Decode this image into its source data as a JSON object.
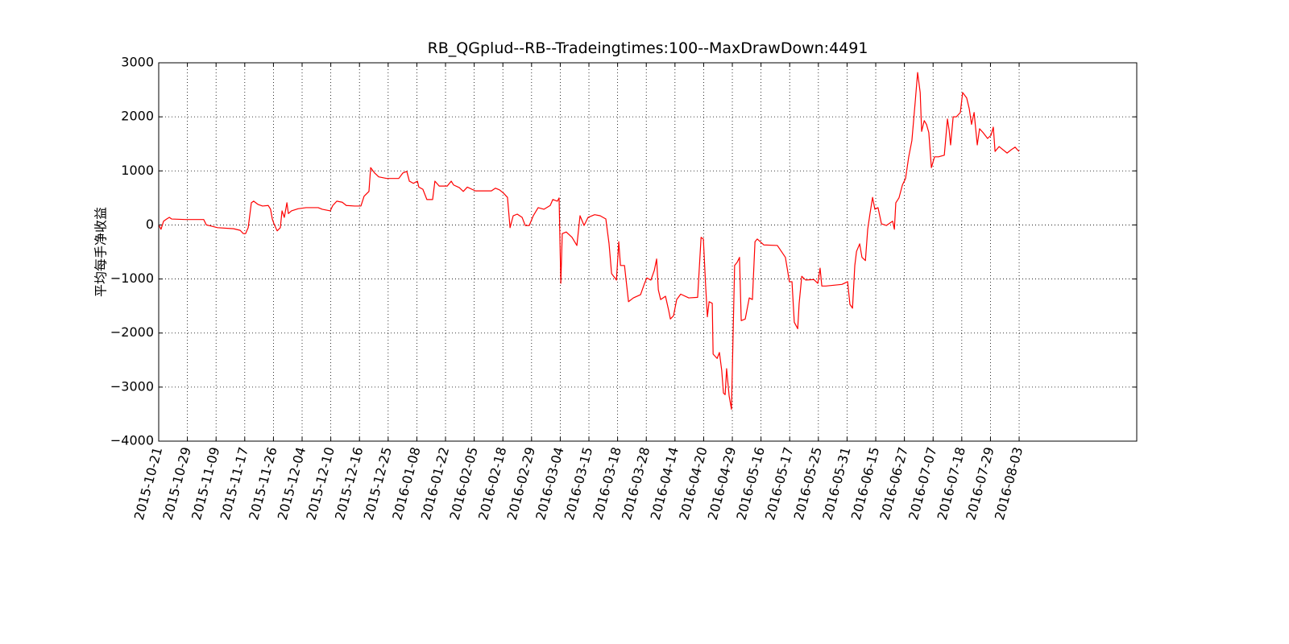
{
  "chart_data": {
    "type": "line",
    "title": "RB_QGplud--RB--Tradeingtimes:100--MaxDrawDown:4491",
    "y_label": "平均每手净收益",
    "color": "#ff0000",
    "grid": true,
    "xlim": [
      0,
      3410
    ],
    "ylim": [
      -4000,
      3000
    ],
    "yticks": [
      {
        "value": -4000,
        "label": "−4000"
      },
      {
        "value": -3000,
        "label": "−3000"
      },
      {
        "value": -2000,
        "label": "−2000"
      },
      {
        "value": -1000,
        "label": "−1000"
      },
      0,
      1000,
      2000,
      3000
    ],
    "xticks": [
      {
        "value": 0,
        "label": "2015-10-21"
      },
      {
        "value": 100,
        "label": "2015-10-29"
      },
      {
        "value": 200,
        "label": "2015-11-09"
      },
      {
        "value": 300,
        "label": "2015-11-17"
      },
      {
        "value": 400,
        "label": "2015-11-26"
      },
      {
        "value": 500,
        "label": "2015-12-04"
      },
      {
        "value": 600,
        "label": "2015-12-10"
      },
      {
        "value": 700,
        "label": "2015-12-16"
      },
      {
        "value": 800,
        "label": "2015-12-25"
      },
      {
        "value": 900,
        "label": "2016-01-08"
      },
      {
        "value": 1000,
        "label": "2016-01-22"
      },
      {
        "value": 1100,
        "label": "2016-02-05"
      },
      {
        "value": 1200,
        "label": "2016-02-18"
      },
      {
        "value": 1300,
        "label": "2016-02-29"
      },
      {
        "value": 1400,
        "label": "2016-03-04"
      },
      {
        "value": 1500,
        "label": "2016-03-15"
      },
      {
        "value": 1600,
        "label": "2016-03-18"
      },
      {
        "value": 1700,
        "label": "2016-03-28"
      },
      {
        "value": 1800,
        "label": "2016-04-14"
      },
      {
        "value": 1900,
        "label": "2016-04-20"
      },
      {
        "value": 2000,
        "label": "2016-04-29"
      },
      {
        "value": 2100,
        "label": "2016-05-16"
      },
      {
        "value": 2200,
        "label": "2016-05-17"
      },
      {
        "value": 2300,
        "label": "2016-05-25"
      },
      {
        "value": 2400,
        "label": "2016-05-31"
      },
      {
        "value": 2500,
        "label": "2016-06-15"
      },
      {
        "value": 2600,
        "label": "2016-06-27"
      },
      {
        "value": 2700,
        "label": "2016-07-07"
      },
      {
        "value": 2800,
        "label": "2016-07-18"
      },
      {
        "value": 2900,
        "label": "2016-07-29"
      },
      {
        "value": 3000,
        "label": "2016-08-03"
      }
    ],
    "x": [
      0,
      8,
      17,
      28,
      37,
      45,
      93,
      157,
      166,
      183,
      205,
      261,
      284,
      295,
      303,
      312,
      323,
      331,
      346,
      362,
      382,
      390,
      396,
      402,
      413,
      424,
      430,
      438,
      447,
      452,
      463,
      486,
      514,
      556,
      570,
      598,
      607,
      621,
      640,
      654,
      683,
      705,
      716,
      733,
      739,
      753,
      767,
      795,
      837,
      851,
      865,
      874,
      888,
      902,
      907,
      921,
      935,
      955,
      963,
      978,
      1006,
      1020,
      1028,
      1048,
      1062,
      1076,
      1104,
      1160,
      1174,
      1188,
      1202,
      1216,
      1225,
      1236,
      1250,
      1267,
      1278,
      1292,
      1306,
      1323,
      1343,
      1365,
      1374,
      1390,
      1396,
      1402,
      1407,
      1421,
      1441,
      1458,
      1469,
      1483,
      1497,
      1520,
      1539,
      1559,
      1570,
      1579,
      1596,
      1604,
      1610,
      1624,
      1638,
      1655,
      1680,
      1694,
      1702,
      1716,
      1728,
      1736,
      1742,
      1750,
      1767,
      1778,
      1784,
      1795,
      1806,
      1820,
      1848,
      1879,
      1891,
      1899,
      1907,
      1913,
      1919,
      1930,
      1933,
      1947,
      1955,
      1963,
      1969,
      1975,
      1980,
      1989,
      1997,
      2003,
      2008,
      2017,
      2025,
      2031,
      2045,
      2059,
      2070,
      2079,
      2087,
      2110,
      2157,
      2171,
      2185,
      2199,
      2208,
      2216,
      2228,
      2233,
      2242,
      2256,
      2284,
      2298,
      2306,
      2312,
      2326,
      2382,
      2402,
      2410,
      2419,
      2427,
      2433,
      2444,
      2452,
      2464,
      2472,
      2480,
      2489,
      2497,
      2508,
      2520,
      2537,
      2559,
      2565,
      2570,
      2581,
      2593,
      2604,
      2615,
      2626,
      2638,
      2646,
      2655,
      2660,
      2669,
      2677,
      2685,
      2694,
      2705,
      2719,
      2739,
      2750,
      2756,
      2761,
      2770,
      2781,
      2795,
      2803,
      2817,
      2826,
      2834,
      2843,
      2854,
      2862,
      2874,
      2890,
      2902,
      2910,
      2916,
      2930,
      2958,
      2972,
      2986,
      2994,
      3000
    ],
    "values": [
      0,
      -80,
      70,
      110,
      140,
      110,
      100,
      100,
      0,
      -20,
      -50,
      -70,
      -100,
      -160,
      -160,
      -50,
      410,
      440,
      380,
      350,
      360,
      290,
      110,
      20,
      -110,
      -50,
      260,
      140,
      410,
      210,
      260,
      300,
      320,
      320,
      290,
      260,
      360,
      440,
      420,
      360,
      350,
      350,
      530,
      620,
      1060,
      960,
      890,
      860,
      860,
      960,
      990,
      810,
      770,
      810,
      700,
      660,
      470,
      470,
      810,
      720,
      720,
      810,
      740,
      690,
      620,
      700,
      630,
      630,
      680,
      650,
      590,
      510,
      -50,
      170,
      200,
      140,
      -10,
      -10,
      170,
      320,
      290,
      360,
      470,
      440,
      500,
      -1080,
      -160,
      -130,
      -230,
      -380,
      170,
      -10,
      140,
      190,
      170,
      110,
      -340,
      -900,
      -1020,
      -310,
      -750,
      -750,
      -1420,
      -1350,
      -1290,
      -1080,
      -980,
      -1020,
      -840,
      -630,
      -1200,
      -1380,
      -1320,
      -1580,
      -1740,
      -1680,
      -1380,
      -1280,
      -1350,
      -1340,
      -230,
      -260,
      -1130,
      -1700,
      -1420,
      -1450,
      -2390,
      -2470,
      -2360,
      -2690,
      -3110,
      -3140,
      -2660,
      -3170,
      -3410,
      -1950,
      -750,
      -690,
      -600,
      -1770,
      -1740,
      -1350,
      -1380,
      -310,
      -260,
      -370,
      -380,
      -490,
      -600,
      -1050,
      -1050,
      -1800,
      -1920,
      -1450,
      -950,
      -1020,
      -1010,
      -1080,
      -800,
      -1130,
      -1130,
      -1100,
      -1050,
      -1470,
      -1540,
      -750,
      -490,
      -350,
      -600,
      -660,
      -80,
      210,
      510,
      290,
      320,
      20,
      -10,
      70,
      -80,
      410,
      500,
      740,
      860,
      1260,
      1560,
      2300,
      2820,
      2450,
      1730,
      1930,
      1860,
      1710,
      1060,
      1260,
      1260,
      1290,
      1960,
      1750,
      1480,
      2000,
      2000,
      2080,
      2450,
      2350,
      2150,
      1860,
      2080,
      1480,
      1780,
      1710,
      1600,
      1660,
      1810,
      1360,
      1450,
      1330,
      1390,
      1440,
      1390,
      1360
    ]
  }
}
